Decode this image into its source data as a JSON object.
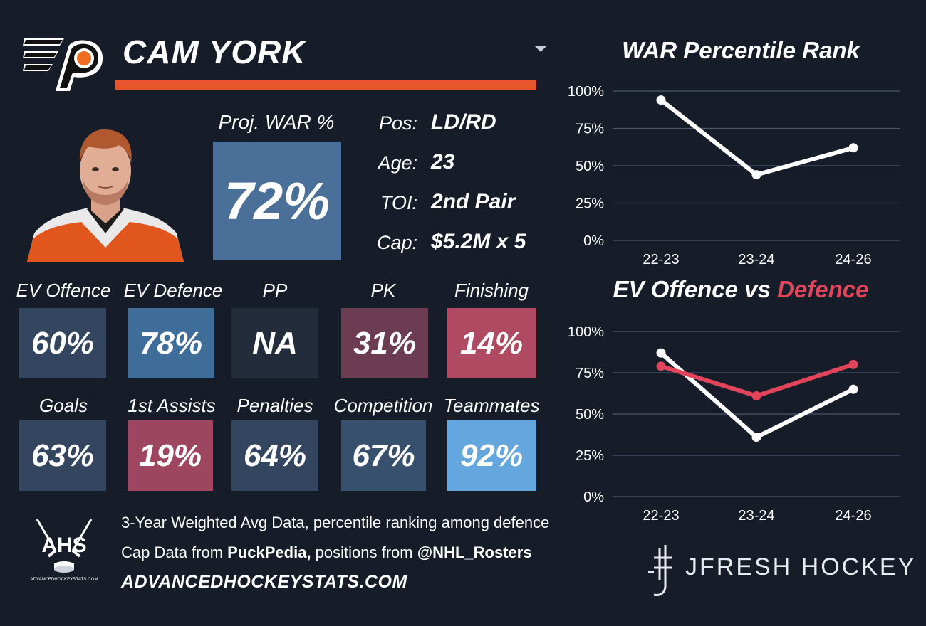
{
  "player": {
    "name": "CAM YORK",
    "war_label": "Proj. WAR %",
    "war_value": "72%",
    "info": [
      {
        "label": "Pos:",
        "value": "LD/RD"
      },
      {
        "label": "Age:",
        "value": "23"
      },
      {
        "label": "TOI:",
        "value": "2nd Pair"
      },
      {
        "label": "Cap:",
        "value": "$5.2M x 5"
      }
    ]
  },
  "stats_row1": [
    {
      "label": "EV Offence",
      "value": "60%",
      "color": "#34465f"
    },
    {
      "label": "EV Defence",
      "value": "78%",
      "color": "#3f6d9a"
    },
    {
      "label": "PP",
      "value": "NA",
      "color": "#232c3a"
    },
    {
      "label": "PK",
      "value": "31%",
      "color": "#6b3c52"
    },
    {
      "label": "Finishing",
      "value": "14%",
      "color": "#b04a62"
    }
  ],
  "stats_row2": [
    {
      "label": "Goals",
      "value": "63%",
      "color": "#34465f"
    },
    {
      "label": "1st Assists",
      "value": "19%",
      "color": "#9e4660"
    },
    {
      "label": "Penalties",
      "value": "64%",
      "color": "#34465f"
    },
    {
      "label": "Competition",
      "value": "67%",
      "color": "#37506d"
    },
    {
      "label": "Teammates",
      "value": "92%",
      "color": "#64a6de"
    }
  ],
  "footer": {
    "line1": "3-Year Weighted Avg Data, percentile ranking among defence",
    "line2_prefix": "Cap Data from ",
    "line2_source": "PuckPedia,",
    "line2_mid": " positions from ",
    "line2_handle": "@NHL_Rosters",
    "url": "ADVANCEDHOCKEYSTATS.COM",
    "ahs_logo_text": "AHS",
    "ahs_logo_sub": "ADVANCEDHOCKEYSTATS.COM",
    "brand": "JFRESH HOCKEY"
  },
  "colors": {
    "background": "#161d29",
    "accent_orange": "#e8542c",
    "war_box": "#4a6f98",
    "defence_red": "#e2445c",
    "offence_white": "#ffffff",
    "gridline": "#4a5670"
  },
  "icons": {
    "team_logo": "flyers-logo",
    "dropdown": "caret-down-icon",
    "headshot": "player-headshot",
    "ahs_logo": "ahs-logo",
    "brand_logo": "jfresh-logo"
  },
  "chart_data": [
    {
      "type": "line",
      "title": "WAR Percentile Rank",
      "categories": [
        "22-23",
        "23-24",
        "24-26"
      ],
      "series": [
        {
          "values": [
            94,
            44,
            62
          ],
          "color": "#ffffff"
        }
      ],
      "ylim": [
        0,
        100
      ],
      "yticks": [
        "0%",
        "25%",
        "50%",
        "75%",
        "100%"
      ],
      "grid": true
    },
    {
      "type": "line",
      "title_parts": [
        "EV Offence vs ",
        "Defence"
      ],
      "categories": [
        "22-23",
        "23-24",
        "24-26"
      ],
      "series": [
        {
          "values": [
            87,
            36,
            65
          ],
          "color": "#ffffff"
        },
        {
          "values": [
            79,
            61,
            80
          ],
          "color": "#e2445c"
        }
      ],
      "ylim": [
        0,
        100
      ],
      "yticks": [
        "0%",
        "25%",
        "50%",
        "75%",
        "100%"
      ],
      "grid": true
    }
  ]
}
